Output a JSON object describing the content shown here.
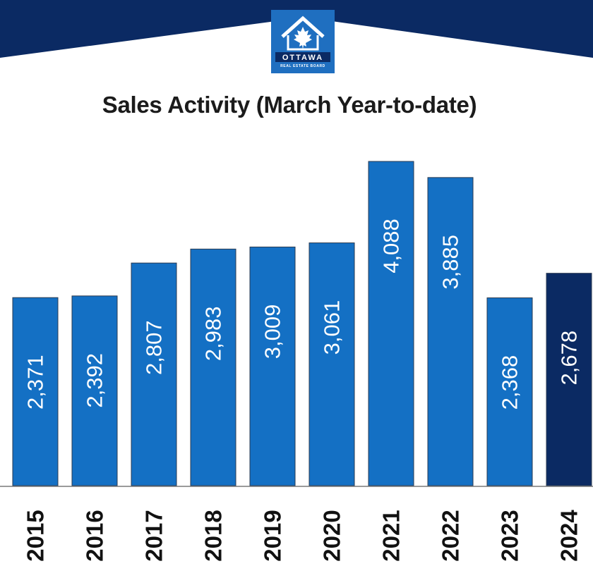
{
  "logo": {
    "name": "OTTAWA",
    "subtitle": "REAL ESTATE BOARD",
    "background_color": "#1f6fc0",
    "icon": "maple-leaf-house-icon"
  },
  "colors": {
    "banner": "#0b2a63",
    "bar": "#1470c4",
    "bar_highlight": "#0b2a63",
    "bar_label": "#ffffff"
  },
  "chart_data": {
    "type": "bar",
    "title": "Sales Activity (March Year-to-date)",
    "categories": [
      "2015",
      "2016",
      "2017",
      "2018",
      "2019",
      "2020",
      "2021",
      "2022",
      "2023",
      "2024"
    ],
    "values": [
      2371,
      2392,
      2807,
      2983,
      3009,
      3061,
      4088,
      3885,
      2368,
      2678
    ],
    "value_labels": [
      "2,371",
      "2,392",
      "2,807",
      "2,983",
      "3,009",
      "3,061",
      "4,088",
      "3,885",
      "2,368",
      "2,678"
    ],
    "highlight_category": "2024",
    "ylim": [
      0,
      4088
    ],
    "xlabel": "",
    "ylabel": "",
    "grid": false,
    "legend": "none"
  }
}
